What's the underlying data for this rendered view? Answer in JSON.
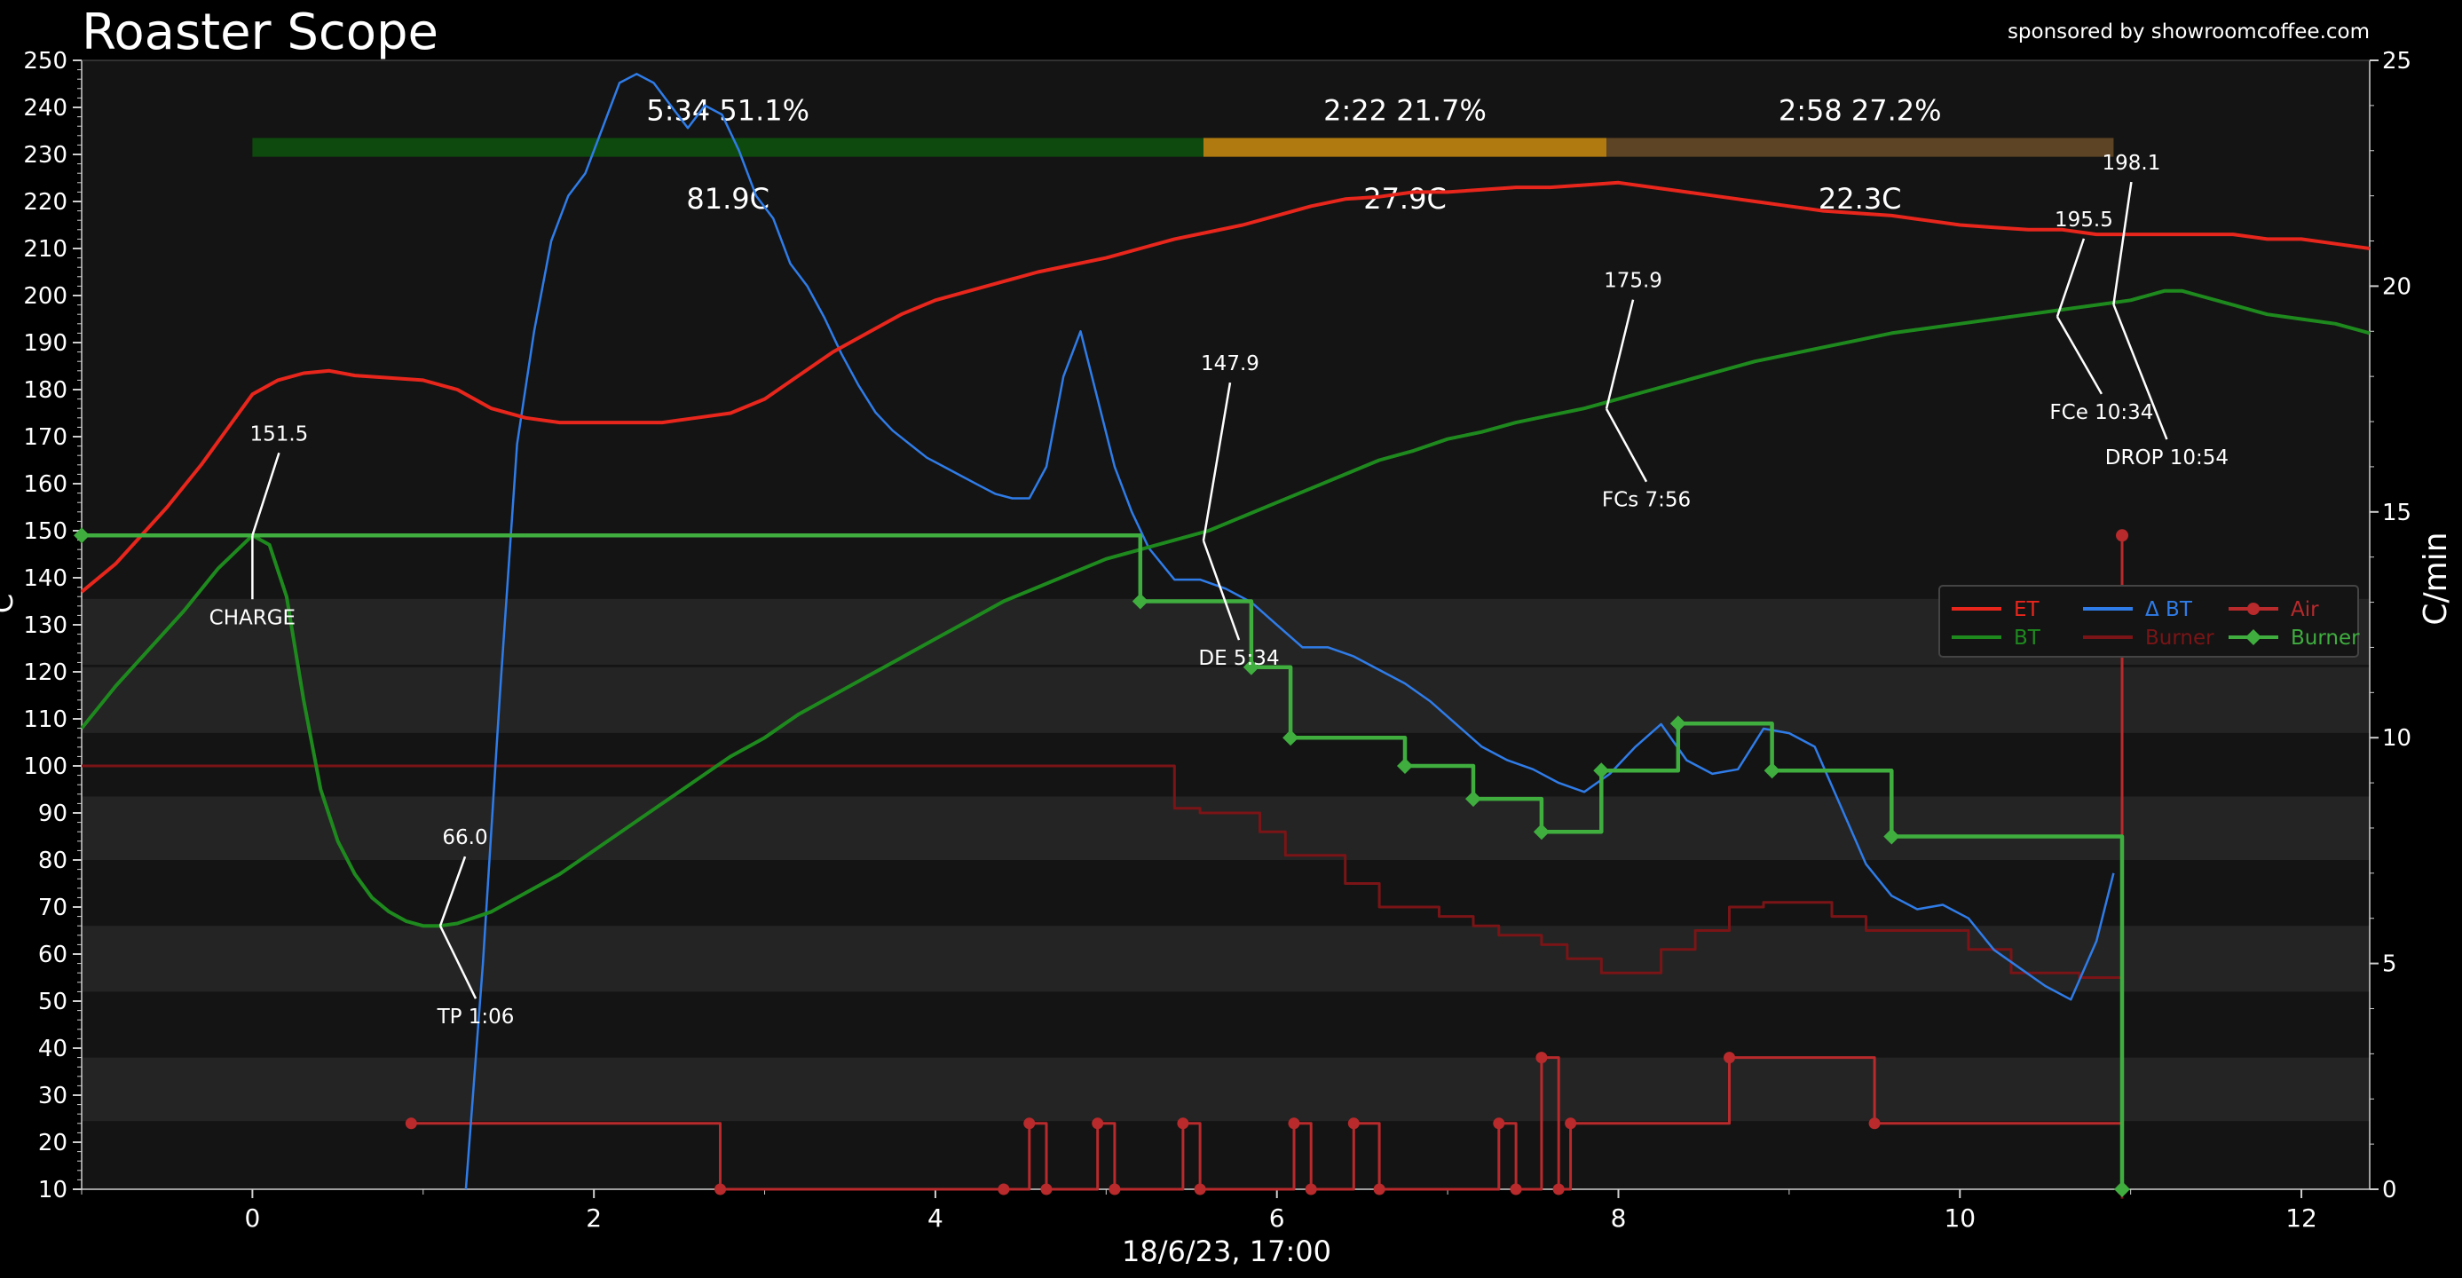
{
  "header": {
    "title": "Roaster Scope",
    "sponsor": "sponsored by showroomcoffee.com"
  },
  "chart_data": {
    "type": "line",
    "xlabel": "18/6/23, 17:00",
    "ylabel_left": "C",
    "ylabel_right": "C/min",
    "xlim": [
      -1,
      12.4
    ],
    "ylim_left": [
      10,
      250
    ],
    "ylim_right": [
      0,
      25
    ],
    "xticks": [
      0,
      2,
      4,
      6,
      8,
      10,
      12
    ],
    "yticks_left": [
      10,
      20,
      30,
      40,
      50,
      60,
      70,
      80,
      90,
      100,
      110,
      120,
      130,
      140,
      150,
      160,
      170,
      180,
      190,
      200,
      210,
      220,
      230,
      240,
      250
    ],
    "yticks_right": [
      0,
      5,
      10,
      15,
      20,
      25
    ],
    "grid": false,
    "legend_position": "center-right",
    "colors": {
      "background": "#141414",
      "band": "#242424",
      "ET": "#e8261c",
      "BT": "#1e8a1e",
      "DeltaBT": "#2f7ce8",
      "BurnerLine": "#7a1416",
      "AirEvent": "#b82a2c",
      "BurnerEvent": "#3fae3f",
      "phase_drying": "#0e4a0e",
      "phase_maillard": "#b07a10",
      "phase_finish": "#5c4424",
      "annotation": "#ffffff"
    },
    "phases": [
      {
        "label": "5:34  51.1%",
        "delta": "81.9C",
        "x_start": 0,
        "x_end": 5.57,
        "color": "phase_drying"
      },
      {
        "label": "2:22  21.7%",
        "delta": "27.9C",
        "x_start": 5.57,
        "x_end": 7.93,
        "color": "phase_maillard"
      },
      {
        "label": "2:58  27.2%",
        "delta": "22.3C",
        "x_start": 7.93,
        "x_end": 10.9,
        "color": "phase_finish"
      }
    ],
    "annotations": [
      {
        "value": "151.5",
        "label": "CHARGE",
        "x": 0,
        "y": 149
      },
      {
        "value": "66.0",
        "label": "TP 1:06",
        "x": 1.1,
        "y": 66
      },
      {
        "value": "147.9",
        "label": "DE 5:34",
        "x": 5.57,
        "y": 147.9
      },
      {
        "value": "175.9",
        "label": "FCs 7:56",
        "x": 7.93,
        "y": 175.9
      },
      {
        "value": "195.5",
        "label": "FCe 10:34",
        "x": 10.57,
        "y": 195.5
      },
      {
        "value": "198.1",
        "label": "DROP 10:54",
        "x": 10.9,
        "y": 198.1
      }
    ],
    "series": [
      {
        "name": "ET",
        "axis": "left",
        "color": "ET",
        "x": [
          -1,
          -0.8,
          -0.5,
          -0.3,
          -0.1,
          0,
          0.15,
          0.3,
          0.45,
          0.6,
          0.8,
          1.0,
          1.2,
          1.4,
          1.6,
          1.8,
          2.0,
          2.2,
          2.4,
          2.6,
          2.8,
          3.0,
          3.2,
          3.4,
          3.6,
          3.8,
          4.0,
          4.2,
          4.4,
          4.6,
          4.8,
          5.0,
          5.2,
          5.4,
          5.6,
          5.8,
          6.0,
          6.2,
          6.4,
          6.6,
          6.8,
          7.0,
          7.2,
          7.4,
          7.6,
          7.8,
          8.0,
          8.2,
          8.4,
          8.6,
          8.8,
          9.0,
          9.2,
          9.4,
          9.6,
          9.8,
          10.0,
          10.2,
          10.4,
          10.6,
          10.8,
          11.0,
          11.2,
          11.4,
          11.6,
          11.8,
          12.0,
          12.2,
          12.4
        ],
        "y": [
          137,
          143,
          155,
          164,
          174,
          179,
          182,
          183.5,
          184,
          183,
          182.5,
          182,
          180,
          176,
          174,
          173,
          173,
          173,
          173,
          174,
          175,
          178,
          183,
          188,
          192,
          196,
          199,
          201,
          203,
          205,
          206.5,
          208,
          210,
          212,
          213.5,
          215,
          217,
          219,
          220.5,
          221,
          222,
          222,
          222.5,
          223,
          223,
          223.5,
          224,
          223,
          222,
          221,
          220,
          219,
          218,
          217.5,
          217,
          216,
          215,
          214.5,
          214,
          214,
          213,
          213,
          213,
          213,
          213,
          212,
          212,
          211,
          210
        ]
      },
      {
        "name": "BT",
        "axis": "left",
        "color": "BT",
        "x": [
          -1,
          -0.8,
          -0.6,
          -0.4,
          -0.2,
          0,
          0.1,
          0.2,
          0.3,
          0.4,
          0.5,
          0.6,
          0.7,
          0.8,
          0.9,
          1.0,
          1.1,
          1.2,
          1.4,
          1.6,
          1.8,
          2.0,
          2.2,
          2.4,
          2.6,
          2.8,
          3.0,
          3.2,
          3.4,
          3.6,
          3.8,
          4.0,
          4.2,
          4.4,
          4.6,
          4.8,
          5.0,
          5.2,
          5.4,
          5.6,
          5.8,
          6.0,
          6.2,
          6.4,
          6.6,
          6.8,
          7.0,
          7.2,
          7.4,
          7.6,
          7.8,
          8.0,
          8.2,
          8.4,
          8.6,
          8.8,
          9.0,
          9.2,
          9.4,
          9.6,
          9.8,
          10.0,
          10.2,
          10.4,
          10.6,
          10.8,
          11.0,
          11.2,
          11.3,
          11.4,
          11.6,
          11.8,
          12.0,
          12.2,
          12.4
        ],
        "y": [
          108,
          117,
          125,
          133,
          142,
          149,
          147,
          136,
          114,
          95,
          84,
          77,
          72,
          69,
          67,
          66,
          66,
          66.5,
          69,
          73,
          77,
          82,
          87,
          92,
          97,
          102,
          106,
          111,
          115,
          119,
          123,
          127,
          131,
          135,
          138,
          141,
          144,
          146,
          148,
          150,
          153,
          156,
          159,
          162,
          165,
          167,
          169.5,
          171,
          173,
          174.5,
          176,
          178,
          180,
          182,
          184,
          186,
          187.5,
          189,
          190.5,
          192,
          193,
          194,
          195,
          196,
          197,
          198,
          199,
          201,
          201,
          200,
          198,
          196,
          195,
          194,
          192
        ]
      },
      {
        "name": "Δ BT",
        "axis": "right",
        "color": "DeltaBT",
        "x": [
          1.25,
          1.35,
          1.45,
          1.55,
          1.65,
          1.75,
          1.85,
          1.95,
          2.05,
          2.15,
          2.25,
          2.35,
          2.45,
          2.55,
          2.65,
          2.75,
          2.85,
          2.95,
          3.05,
          3.15,
          3.25,
          3.35,
          3.45,
          3.55,
          3.65,
          3.75,
          3.85,
          3.95,
          4.05,
          4.15,
          4.25,
          4.35,
          4.45,
          4.55,
          4.65,
          4.75,
          4.85,
          4.95,
          5.05,
          5.15,
          5.25,
          5.4,
          5.55,
          5.7,
          5.85,
          6.0,
          6.15,
          6.3,
          6.45,
          6.6,
          6.75,
          6.9,
          7.05,
          7.2,
          7.35,
          7.5,
          7.65,
          7.8,
          7.95,
          8.1,
          8.25,
          8.4,
          8.55,
          8.7,
          8.85,
          9.0,
          9.15,
          9.3,
          9.45,
          9.6,
          9.75,
          9.9,
          10.05,
          10.2,
          10.35,
          10.5,
          10.65,
          10.8,
          10.9
        ],
        "y": [
          0,
          5,
          11,
          16.5,
          19,
          21,
          22,
          22.5,
          23.5,
          24.5,
          24.7,
          24.5,
          24,
          23.5,
          24,
          23.8,
          23,
          22,
          21.5,
          20.5,
          20,
          19.3,
          18.5,
          17.8,
          17.2,
          16.8,
          16.5,
          16.2,
          16.0,
          15.8,
          15.6,
          15.4,
          15.3,
          15.3,
          16,
          18,
          19,
          17.5,
          16,
          15,
          14.2,
          13.5,
          13.5,
          13.3,
          13.0,
          12.5,
          12.0,
          12.0,
          11.8,
          11.5,
          11.2,
          10.8,
          10.3,
          9.8,
          9.5,
          9.3,
          9.0,
          8.8,
          9.2,
          9.8,
          10.3,
          9.5,
          9.2,
          9.3,
          10.2,
          10.1,
          9.8,
          8.5,
          7.2,
          6.5,
          6.2,
          6.3,
          6.0,
          5.3,
          4.9,
          4.5,
          4.2,
          5.5,
          7.0
        ]
      },
      {
        "name": "Burner",
        "axis": "left",
        "color": "BurnerLine",
        "step": true,
        "x": [
          -1,
          5.25,
          5.4,
          5.55,
          5.75,
          5.9,
          6.05,
          6.2,
          6.4,
          6.6,
          6.8,
          6.95,
          7.15,
          7.3,
          7.55,
          7.7,
          7.9,
          8.05,
          8.25,
          8.45,
          8.65,
          8.85,
          9.05,
          9.25,
          9.45,
          9.65,
          9.85,
          10.05,
          10.3,
          10.5,
          10.7,
          10.85,
          10.95
        ],
        "y": [
          100,
          100,
          91,
          90,
          90,
          86,
          81,
          81,
          75,
          70,
          70,
          68,
          66,
          64,
          62,
          59,
          56,
          56,
          61,
          65,
          70,
          71,
          71,
          68,
          65,
          65,
          65,
          61,
          56,
          56,
          55,
          55,
          8
        ]
      },
      {
        "name": "Air",
        "axis": "left",
        "color": "AirEvent",
        "step": true,
        "markers": true,
        "x": [
          0.93,
          2.74,
          4.4,
          4.55,
          4.65,
          4.95,
          5.05,
          5.45,
          5.55,
          6.1,
          6.2,
          6.45,
          6.6,
          7.3,
          7.4,
          7.55,
          7.65,
          7.72,
          8.65,
          9.5,
          10.95
        ],
        "y": [
          24,
          10,
          10,
          24,
          10,
          24,
          10,
          24,
          10,
          24,
          10,
          24,
          10,
          24,
          10,
          38,
          10,
          24,
          38,
          24,
          10
        ]
      },
      {
        "name": "Burner",
        "axis": "left",
        "color": "BurnerEvent",
        "step": true,
        "markers": true,
        "x": [
          -1,
          5.2,
          5.85,
          6.08,
          6.75,
          7.15,
          7.55,
          7.9,
          8.35,
          8.9,
          9.6,
          10.95
        ],
        "y": [
          149,
          135,
          121,
          106,
          100,
          93,
          86,
          99,
          109,
          99,
          85,
          10
        ]
      },
      {
        "name": "Air",
        "axis": "left",
        "color": "AirEvent",
        "vertical_marker": true,
        "x": [
          10.95,
          10.95
        ],
        "y": [
          10,
          149
        ]
      }
    ],
    "legend": [
      {
        "label": "ET",
        "color": "ET",
        "style": "line"
      },
      {
        "label": "BT",
        "color": "BT",
        "style": "line"
      },
      {
        "label": "Δ BT",
        "color": "DeltaBT",
        "style": "line"
      },
      {
        "label": "Burner",
        "color": "BurnerLine",
        "style": "line"
      },
      {
        "label": "Air",
        "color": "AirEvent",
        "style": "marker-line"
      },
      {
        "label": "Burner",
        "color": "BurnerEvent",
        "style": "marker-line"
      }
    ]
  }
}
